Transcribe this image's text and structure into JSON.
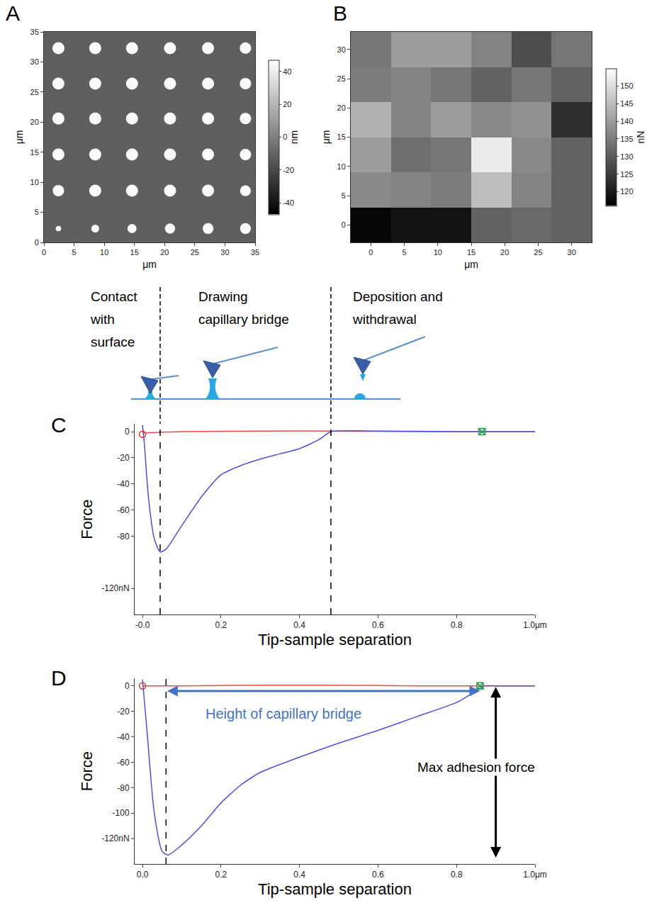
{
  "chart_data": [
    {
      "label": "A",
      "type": "heatmap",
      "x_label": "μm",
      "y_label": "μm",
      "xlim": [
        0,
        35
      ],
      "ylim": [
        0,
        35
      ],
      "xticks": [
        0,
        5,
        10,
        15,
        20,
        25,
        30,
        35
      ],
      "yticks": [
        0,
        5,
        10,
        15,
        20,
        25,
        30,
        35
      ],
      "colorbar": {
        "title": "nm",
        "zlim": [
          -47,
          47
        ],
        "ticks": [
          -40,
          -20,
          0,
          20,
          40
        ]
      },
      "background": -12,
      "dot_height": 45,
      "dots": {
        "x": [
          2.4,
          8.5,
          14.6,
          20.9,
          27.2,
          33.4
        ],
        "y": [
          2.3,
          8.6,
          14.6,
          20.6,
          26.4,
          32.3
        ],
        "diameter": [
          [
            0.9,
            1.3,
            1.5,
            1.7,
            1.8,
            1.8
          ],
          [
            1.9,
            2.0,
            2.0,
            2.0,
            2.0,
            1.8
          ],
          [
            2.0,
            2.0,
            2.0,
            2.0,
            2.0,
            1.9
          ],
          [
            2.0,
            2.0,
            2.0,
            2.0,
            2.0,
            1.9
          ],
          [
            2.0,
            2.0,
            2.0,
            2.0,
            2.0,
            1.9
          ],
          [
            2.0,
            2.0,
            2.0,
            2.0,
            2.0,
            1.9
          ]
        ]
      },
      "grid": false
    },
    {
      "label": "B",
      "type": "heatmap",
      "x_label": "μm",
      "y_label": "μm",
      "x": [
        0,
        6,
        12,
        18,
        24,
        30
      ],
      "y": [
        0,
        6,
        12,
        18,
        24,
        30
      ],
      "z": [
        [
          117,
          119,
          119,
          131,
          132,
          131
        ],
        [
          137,
          136,
          135,
          145,
          136,
          131
        ],
        [
          140,
          133,
          134,
          152,
          137,
          131
        ],
        [
          143,
          136,
          140,
          137,
          138,
          123
        ],
        [
          135,
          136,
          134,
          131,
          134,
          131
        ],
        [
          134,
          140,
          140,
          136,
          128,
          134
        ]
      ],
      "xlim": [
        -3,
        33
      ],
      "ylim": [
        -3,
        33
      ],
      "xticks": [
        0,
        5,
        10,
        15,
        20,
        25,
        30
      ],
      "yticks": [
        0,
        5,
        10,
        15,
        20,
        25,
        30
      ],
      "colorbar": {
        "title": "nN",
        "zlim": [
          116,
          155
        ],
        "ticks": [
          120,
          125,
          130,
          135,
          140,
          145,
          150
        ]
      },
      "grid": false
    },
    {
      "label": "C",
      "type": "line",
      "x_label": "Tip-sample separation",
      "y_label": "Force",
      "xlim": [
        -0.02,
        1.0
      ],
      "ylim": [
        -140,
        6
      ],
      "xticks": [
        {
          "value": 0,
          "label": "-0.0"
        },
        0.2,
        0.4,
        0.6,
        0.8,
        {
          "value": 1.0,
          "label": "1.0μm"
        }
      ],
      "yticks": [
        0,
        -20,
        -40,
        -60,
        -80,
        {
          "value": -120,
          "label": "-120nN"
        }
      ],
      "series": [
        {
          "color": "#ee4848",
          "x": [
            0,
            0.1,
            0.3,
            0.5,
            0.7,
            0.9,
            1.0
          ],
          "values": [
            -1,
            0,
            0.5,
            0.5,
            0,
            0,
            0
          ]
        },
        {
          "color": "#5050dc",
          "x": [
            0,
            0.005,
            0.015,
            0.03,
            0.045,
            0.06,
            0.1,
            0.15,
            0.2,
            0.25,
            0.3,
            0.35,
            0.4,
            0.45,
            0.48,
            0.6,
            0.8,
            1.0
          ],
          "values": [
            5,
            -10,
            -50,
            -82,
            -92,
            -90,
            -72,
            -50,
            -33,
            -26,
            -21,
            -17,
            -13,
            -6,
            0,
            0.5,
            0,
            0
          ]
        }
      ],
      "markers": [
        {
          "x": 0,
          "y": -2,
          "color": "#e03030",
          "marker": "circle-open"
        },
        {
          "x": 0.865,
          "y": 0,
          "color": "#20a040",
          "marker": "square-x-open"
        }
      ],
      "dashed_lines": [
        0.045,
        0.48
      ],
      "grid": false
    },
    {
      "label": "D",
      "type": "line",
      "x_label": "Tip-sample separation",
      "y_label": "Force",
      "xlim": [
        -0.02,
        1.0
      ],
      "ylim": [
        -140,
        6
      ],
      "xticks": [
        {
          "value": 0,
          "label": "0.0"
        },
        0.2,
        0.4,
        0.6,
        0.8,
        {
          "value": 1.0,
          "label": "1.0μm"
        }
      ],
      "yticks": [
        0,
        -20,
        -40,
        -60,
        -80,
        -100,
        {
          "value": -120,
          "label": "-120nN"
        }
      ],
      "series": [
        {
          "color": "#ee4848",
          "x": [
            0,
            0.1,
            0.3,
            0.5,
            0.7,
            0.9,
            1.0
          ],
          "values": [
            0,
            0,
            0.5,
            0.5,
            0,
            0,
            0
          ]
        },
        {
          "color": "#5050dc",
          "x": [
            0,
            0.01,
            0.03,
            0.05,
            0.065,
            0.1,
            0.15,
            0.2,
            0.25,
            0.3,
            0.4,
            0.5,
            0.6,
            0.7,
            0.8,
            0.85,
            0.87,
            0.9,
            1.0
          ],
          "values": [
            5,
            -30,
            -100,
            -130,
            -133,
            -125,
            -110,
            -92,
            -78,
            -68,
            -56,
            -45,
            -35,
            -24,
            -13,
            -4,
            0,
            0,
            0
          ]
        }
      ],
      "markers": [
        {
          "x": 0,
          "y": 0,
          "color": "#e03030",
          "marker": "circle-open"
        },
        {
          "x": 0.86,
          "y": 0,
          "color": "#20a040",
          "marker": "square-x-open"
        }
      ],
      "dashed_lines": [
        0.06
      ],
      "annotations": [
        {
          "text": "Height of capillary bridge",
          "x": 0.36,
          "y": -22,
          "color": "#4472c4",
          "arrow": {
            "x0": 0.06,
            "y0": -4,
            "x1": 0.86,
            "y1": -4
          }
        },
        {
          "text": "Max adhesion force",
          "x": 0.85,
          "y": -64,
          "color": "#000000",
          "arrow": {
            "x0": 0.9,
            "y0": 0,
            "x1": 0.9,
            "y1": -135
          }
        }
      ],
      "grid": false
    }
  ],
  "schematic": {
    "steps": [
      "Contact with surface",
      "Drawing capillary bridge",
      "Deposition and withdrawal"
    ]
  }
}
